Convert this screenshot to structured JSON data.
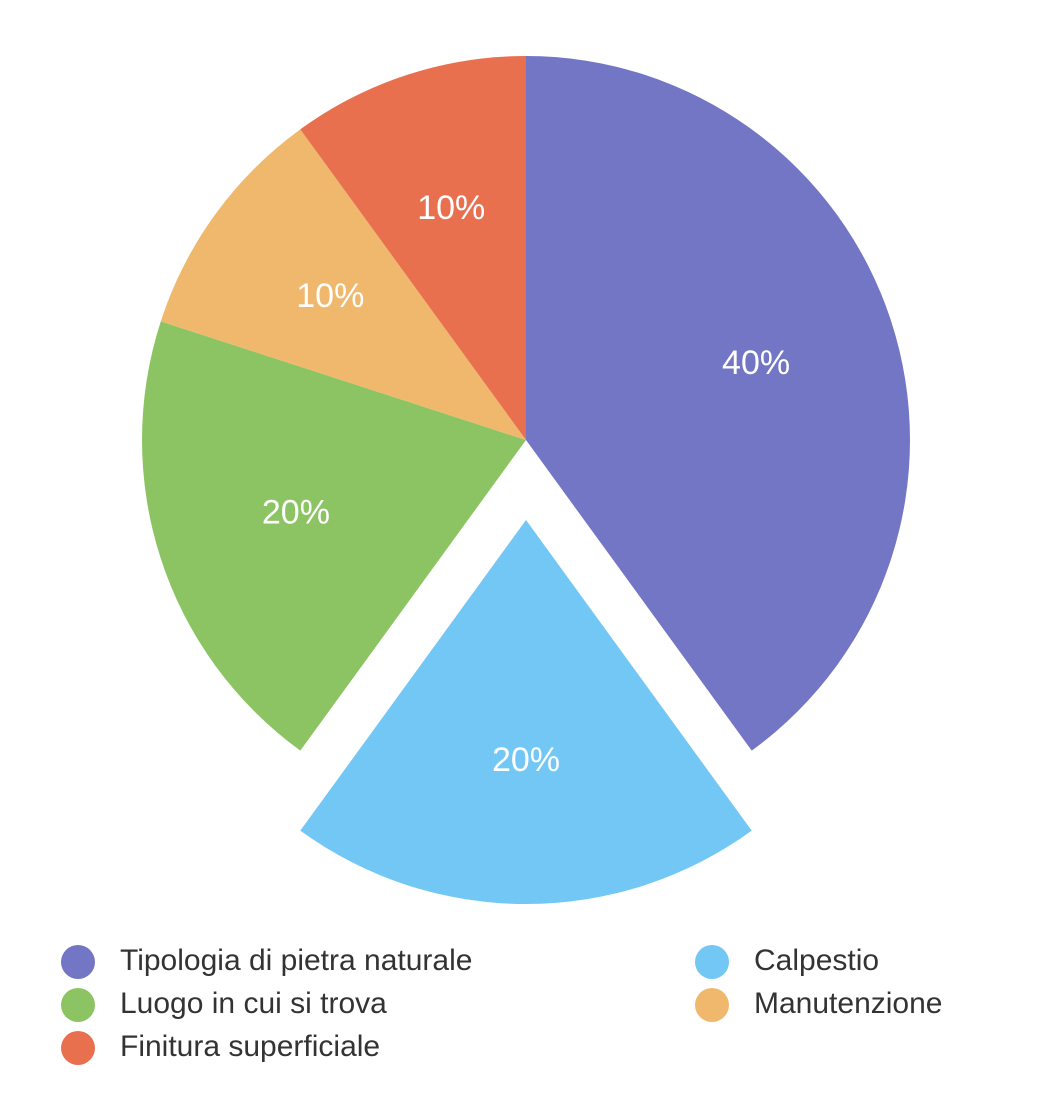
{
  "chart_data": {
    "type": "pie",
    "categories": [
      "Tipologia di pietra naturale",
      "Calpestio",
      "Luogo in cui si trova",
      "Manutenzione",
      "Finitura superficiale"
    ],
    "values": [
      40,
      20,
      20,
      10,
      10
    ],
    "value_labels": [
      "40%",
      "20%",
      "20%",
      "10%",
      "10%"
    ],
    "colors": [
      "#7276c4",
      "#72c7f5",
      "#8cc463",
      "#f0b86c",
      "#e8704f"
    ],
    "explode": [
      false,
      true,
      false,
      false,
      false
    ],
    "legend": "bottom"
  }
}
